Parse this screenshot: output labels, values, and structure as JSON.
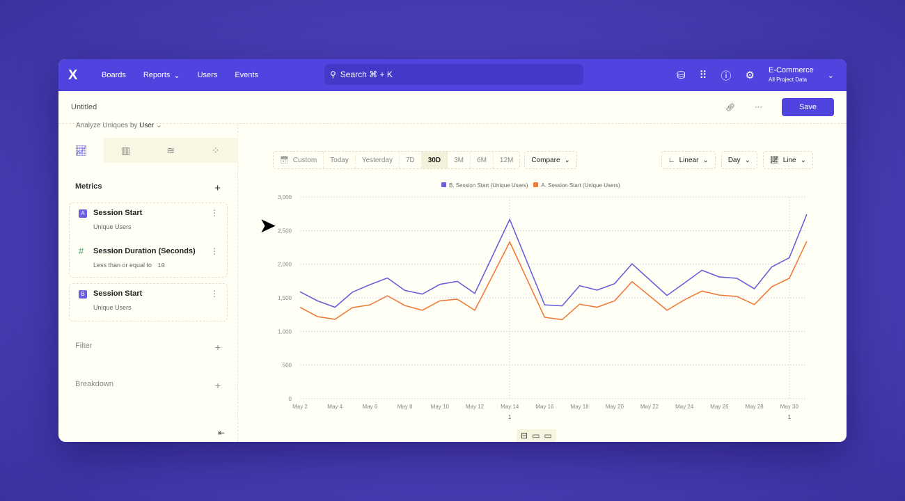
{
  "nav": {
    "logo": "X",
    "items": [
      "Boards",
      "Reports",
      "Users",
      "Events"
    ],
    "search_placeholder": "Search ⌘ + K",
    "project": "E-Commerce",
    "project_sub": "All Project Data",
    "icons": [
      "database-icon",
      "apps-grid-icon",
      "help-icon",
      "settings-icon"
    ]
  },
  "header": {
    "title": "Untitled",
    "save_label": "Save"
  },
  "left": {
    "analyze_label": "Analyze Uniques by",
    "analyze_value": "User",
    "metrics_label": "Metrics",
    "filter_label": "Filter",
    "breakdown_label": "Breakdown",
    "metrics": [
      {
        "badge": "A",
        "name": "Session Start",
        "sub": "Unique Users"
      },
      {
        "badge": "#",
        "name": "Session Duration (Seconds)",
        "sub": "Less than or equal to",
        "value": "10"
      },
      {
        "badge": "B",
        "name": "Session Start",
        "sub": "Unique Users"
      }
    ]
  },
  "toolbar": {
    "ranges": [
      "Custom",
      "Today",
      "Yesterday",
      "7D",
      "30D",
      "3M",
      "6M",
      "12M"
    ],
    "selected": "30D",
    "compare": "Compare",
    "scale": "Linear",
    "interval": "Day",
    "chart_type": "Line"
  },
  "colors": {
    "accent": "#4f44e0",
    "series_b": "#6a5fd8",
    "series_a": "#f07a3a"
  },
  "chart_data": {
    "type": "line",
    "ylim": [
      0,
      3000
    ],
    "yticks": [
      "0",
      "500",
      "1,000",
      "1,500",
      "2,000",
      "2,500",
      "3,000"
    ],
    "x": [
      "May 2",
      "May 3",
      "May 4",
      "May 5",
      "May 6",
      "May 7",
      "May 8",
      "May 9",
      "May 10",
      "May 11",
      "May 12",
      "May 13",
      "May 14",
      "May 15",
      "May 16",
      "May 17",
      "May 18",
      "May 19",
      "May 20",
      "May 21",
      "May 22",
      "May 23",
      "May 24",
      "May 25",
      "May 26",
      "May 27",
      "May 28",
      "May 29",
      "May 30",
      "May 31"
    ],
    "xticks": [
      "May 2",
      "May 4",
      "May 6",
      "May 8",
      "May 10",
      "May 12",
      "May 14",
      "May 16",
      "May 18",
      "May 20",
      "May 22",
      "May 24",
      "May 26",
      "May 28",
      "May 30"
    ],
    "legend_position": "top",
    "grid": true,
    "annotations": [
      {
        "x": "May 14",
        "label": "1"
      },
      {
        "x": "May 30",
        "label": "1"
      }
    ],
    "series": [
      {
        "name": "B. Session Start (Unique Users)",
        "color": "#6a5fd8",
        "values": [
          1590,
          1455,
          1360,
          1585,
          1695,
          1795,
          1610,
          1555,
          1700,
          1745,
          1565,
          2115,
          2665,
          2030,
          1395,
          1380,
          1680,
          1615,
          1710,
          2005,
          1770,
          1535,
          1720,
          1910,
          1810,
          1790,
          1635,
          1960,
          2095,
          2740
        ]
      },
      {
        "name": "A. Session Start (Unique Users)",
        "color": "#f07a3a",
        "values": [
          1360,
          1220,
          1180,
          1355,
          1395,
          1530,
          1385,
          1315,
          1455,
          1480,
          1315,
          1820,
          2330,
          1770,
          1210,
          1175,
          1405,
          1360,
          1455,
          1740,
          1530,
          1315,
          1470,
          1600,
          1540,
          1520,
          1400,
          1665,
          1790,
          2340
        ]
      }
    ]
  }
}
